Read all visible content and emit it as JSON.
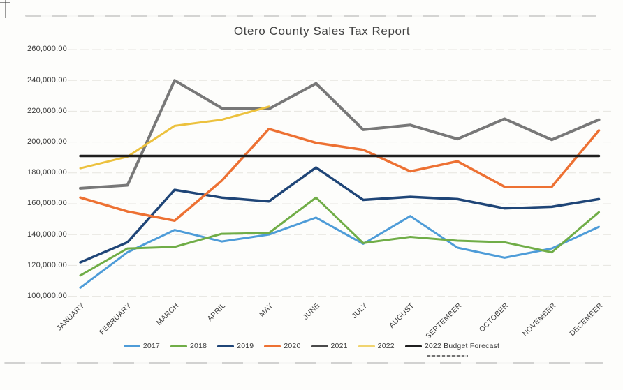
{
  "title": "Otero County Sales Tax Report",
  "chart_data": {
    "type": "line",
    "title": "Otero County Sales Tax Report",
    "xlabel": "",
    "ylabel": "",
    "grid": true,
    "legend_position": "bottom",
    "ylim": [
      100000,
      260000
    ],
    "categories": [
      "JANUARY",
      "FEBRUARY",
      "MARCH",
      "APRIL",
      "MAY",
      "JUNE",
      "JULY",
      "AUGUST",
      "SEPTEMBER",
      "OCTOBER",
      "NOVEMBER",
      "DECEMBER"
    ],
    "y_axis": {
      "min": 100000,
      "max": 260000,
      "step": 20000,
      "tick_labels": [
        "260,000.00",
        "240,000.00",
        "220,000.00",
        "200,000.00",
        "180,000.00",
        "160,000.00",
        "140,000.00",
        "120,000.00",
        "100,000.00"
      ]
    },
    "series": [
      {
        "name": "2017",
        "color": "#4e9cd8",
        "width": 3,
        "values": [
          105500,
          128500,
          143000,
          135500,
          140000,
          151000,
          134000,
          152000,
          131500,
          125000,
          131000,
          145000
        ]
      },
      {
        "name": "2018",
        "color": "#70ad47",
        "width": 3,
        "values": [
          113500,
          131000,
          132000,
          140500,
          141000,
          164000,
          134500,
          138500,
          136000,
          135000,
          128500,
          154500
        ]
      },
      {
        "name": "2019",
        "color": "#1f4577",
        "width": 3.5,
        "values": [
          122000,
          135000,
          169000,
          164000,
          161500,
          183500,
          162500,
          164500,
          163000,
          157000,
          158000,
          163000
        ]
      },
      {
        "name": "2020",
        "color": "#ed7133",
        "width": 3.5,
        "values": [
          164000,
          155000,
          149000,
          175000,
          208500,
          199500,
          195000,
          181000,
          187500,
          171000,
          171000,
          207500
        ]
      },
      {
        "name": "2021",
        "color": "#787878",
        "legend_color": "#4a4a4a",
        "width": 4,
        "values": [
          170000,
          172000,
          240000,
          222000,
          221500,
          238000,
          208000,
          211000,
          202000,
          215000,
          201500,
          214500
        ]
      },
      {
        "name": "2022",
        "color": "#ecc13d",
        "legend_color": "#f0d470",
        "width": 3,
        "values": [
          183000,
          190500,
          210500,
          214500,
          223000,
          null,
          null,
          null,
          null,
          null,
          null,
          null
        ]
      },
      {
        "name": "2022 Budget Forecast",
        "color": "#1f1f1f",
        "width": 3.5,
        "values": [
          191000,
          191000,
          191000,
          191000,
          191000,
          191000,
          191000,
          191000,
          191000,
          191000,
          191000,
          191000
        ]
      }
    ]
  }
}
